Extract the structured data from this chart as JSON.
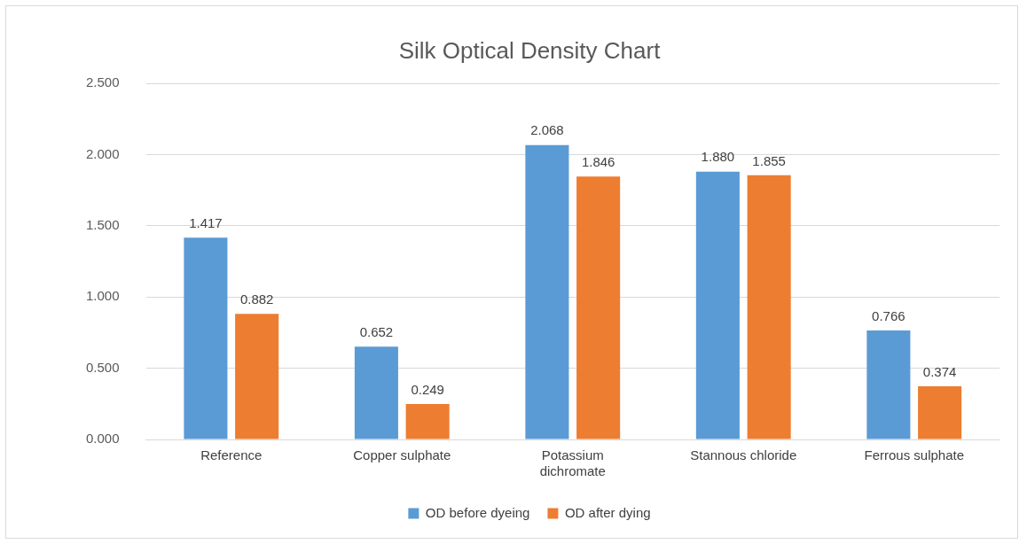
{
  "chart_data": {
    "type": "bar",
    "title": "Silk Optical Density Chart",
    "categories": [
      "Reference",
      "Copper sulphate",
      "Potassium dichromate",
      "Stannous chloride",
      "Ferrous sulphate"
    ],
    "series": [
      {
        "name": "OD before dyeing",
        "color": "#5b9bd5",
        "values": [
          1.417,
          0.652,
          2.068,
          1.88,
          0.766
        ],
        "value_labels": [
          "1.417",
          "0.652",
          "2.068",
          "1.880",
          "0.766"
        ]
      },
      {
        "name": "OD after dying",
        "color": "#ed7d31",
        "values": [
          0.882,
          0.249,
          1.846,
          1.855,
          0.374
        ],
        "value_labels": [
          "0.882",
          "0.249",
          "1.846",
          "1.855",
          "0.374"
        ]
      }
    ],
    "ylim": [
      0,
      2.5
    ],
    "yticks": [
      {
        "value": 0,
        "label": "0.000"
      },
      {
        "value": 0.5,
        "label": "0.500"
      },
      {
        "value": 1,
        "label": "1.000"
      },
      {
        "value": 1.5,
        "label": "1.500"
      },
      {
        "value": 2,
        "label": "2.000"
      },
      {
        "value": 2.5,
        "label": "2.500"
      }
    ],
    "grid": "y",
    "legend": "bottom"
  }
}
